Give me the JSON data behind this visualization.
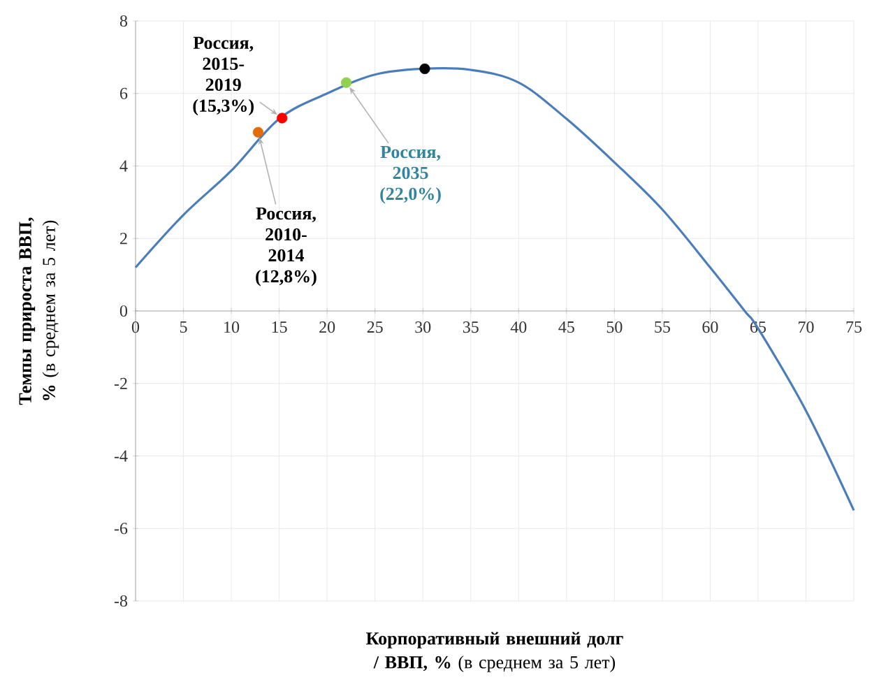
{
  "chart_data": {
    "type": "line",
    "xlabel": "**Корпоративный внешний долг / ВВП, %** (в среднем за 5 лет)",
    "ylabel": "**Темпы прироста ВВП, %** (в среднем за 5 лет)",
    "xlim": [
      0,
      75
    ],
    "ylim": [
      -8,
      8
    ],
    "xticks": [
      0,
      5,
      10,
      15,
      20,
      25,
      30,
      35,
      40,
      45,
      50,
      55,
      60,
      65,
      70,
      75
    ],
    "yticks": [
      -8,
      -6,
      -4,
      -2,
      0,
      2,
      4,
      6,
      8
    ],
    "grid": true,
    "series": [
      {
        "color": "#4a7ebb",
        "marker": "none",
        "x": [
          0,
          5,
          10,
          15,
          20,
          25,
          30,
          35,
          40,
          45,
          50,
          55,
          60,
          63.6,
          65,
          70,
          75
        ],
        "values": [
          1.2,
          2.65,
          3.87,
          5.3,
          6.0,
          6.52,
          6.68,
          6.65,
          6.3,
          5.3,
          4.1,
          2.8,
          1.2,
          0,
          -0.48,
          -2.75,
          -5.5
        ]
      },
      {
        "type": "scatter",
        "marker": "circle",
        "colors": [
          "#e36c09",
          "#ff0000",
          "#92d050",
          "#000000"
        ],
        "x": [
          12.8,
          15.3,
          22.0,
          30.2
        ],
        "values": [
          4.93,
          5.32,
          6.3,
          6.68
        ]
      }
    ],
    "annotations": [
      {
        "text": "Россия, 2010-2014 (12,8%)",
        "x": 12.8,
        "y": 4.93
      },
      {
        "text": "Россия, 2015-2019 (15,3%)",
        "x": 15.3,
        "y": 5.32
      },
      {
        "text": "Россия, 2035 (22,0%)",
        "x": 22.0,
        "y": 6.3
      }
    ]
  }
}
